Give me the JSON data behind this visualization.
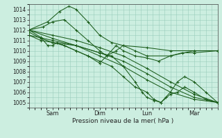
{
  "bg_color": "#cceee0",
  "grid_color": "#99ccbb",
  "line_color": "#1a5c1a",
  "xlabel": "Pression niveau de la mer( hPa )",
  "ylim": [
    1004.5,
    1014.5
  ],
  "yticks": [
    1005,
    1006,
    1007,
    1008,
    1009,
    1010,
    1011,
    1012,
    1013,
    1014
  ],
  "xlim": [
    0,
    8
  ],
  "xtick_positions": [
    1,
    3,
    5,
    7
  ],
  "xtick_labels": [
    "Sam",
    "Dim",
    "Lun",
    "Mar"
  ],
  "lines": [
    {
      "x": [
        0.0,
        0.8,
        1.3,
        1.7,
        2.0,
        2.5,
        3.0,
        3.5,
        4.0,
        5.0,
        6.0,
        7.0,
        8.0
      ],
      "y": [
        1012.0,
        1012.8,
        1013.8,
        1014.3,
        1014.0,
        1012.8,
        1011.5,
        1010.8,
        1010.5,
        1010.3,
        1010.0,
        1010.0,
        1010.0
      ]
    },
    {
      "x": [
        0.0,
        0.6,
        1.0,
        1.5,
        2.0,
        2.5,
        3.0,
        3.3,
        3.7,
        4.0,
        4.5,
        5.0,
        6.0,
        7.0,
        8.0
      ],
      "y": [
        1012.0,
        1012.3,
        1012.8,
        1013.0,
        1012.0,
        1011.0,
        1010.0,
        1009.5,
        1010.0,
        1010.5,
        1010.0,
        1009.5,
        1009.5,
        1010.0,
        1010.0
      ]
    },
    {
      "x": [
        0.0,
        0.5,
        0.8,
        1.0,
        1.2,
        1.5,
        2.0,
        2.5,
        3.0,
        3.3,
        3.7,
        4.0,
        4.5,
        5.0,
        5.5,
        6.0,
        6.5,
        7.0,
        8.0
      ],
      "y": [
        1012.0,
        1011.3,
        1010.5,
        1010.5,
        1010.8,
        1010.5,
        1010.0,
        1009.5,
        1008.8,
        1009.5,
        1010.5,
        1010.0,
        1009.5,
        1009.3,
        1009.0,
        1009.5,
        1009.8,
        1009.8,
        1010.0
      ]
    },
    {
      "x": [
        0.0,
        1.0,
        2.0,
        3.0,
        4.0,
        5.0,
        6.0,
        7.0,
        8.0
      ],
      "y": [
        1012.0,
        1011.5,
        1011.0,
        1010.3,
        1009.5,
        1008.3,
        1007.0,
        1005.8,
        1005.0
      ]
    },
    {
      "x": [
        0.0,
        1.0,
        2.0,
        3.0,
        4.0,
        5.0,
        6.0,
        7.0,
        8.0
      ],
      "y": [
        1011.5,
        1011.0,
        1010.5,
        1009.8,
        1009.0,
        1007.8,
        1006.5,
        1005.5,
        1005.0
      ]
    },
    {
      "x": [
        0.0,
        1.0,
        2.0,
        3.0,
        4.0,
        5.0,
        6.0,
        7.0,
        8.0
      ],
      "y": [
        1012.0,
        1011.2,
        1010.5,
        1009.5,
        1008.5,
        1007.2,
        1006.0,
        1005.3,
        1005.0
      ]
    },
    {
      "x": [
        0.0,
        0.5,
        1.0,
        1.5,
        2.0,
        2.5,
        3.0,
        3.5,
        4.0,
        4.5,
        5.0,
        5.3,
        5.6,
        6.0,
        6.3,
        6.6,
        7.0,
        7.5,
        8.0
      ],
      "y": [
        1011.8,
        1011.2,
        1010.8,
        1010.5,
        1010.0,
        1009.5,
        1009.0,
        1008.5,
        1007.5,
        1006.5,
        1006.0,
        1005.3,
        1005.0,
        1005.8,
        1006.0,
        1006.5,
        1006.0,
        1005.3,
        1005.0
      ]
    },
    {
      "x": [
        0.0,
        0.5,
        1.0,
        2.0,
        3.0,
        3.5,
        4.0,
        4.5,
        4.8,
        5.0,
        5.3,
        5.6,
        5.8,
        6.0,
        6.3,
        6.6,
        7.0,
        7.5,
        8.0
      ],
      "y": [
        1011.5,
        1011.0,
        1010.8,
        1010.5,
        1009.8,
        1009.5,
        1008.5,
        1007.0,
        1006.0,
        1005.5,
        1005.2,
        1005.0,
        1005.5,
        1006.0,
        1007.0,
        1007.5,
        1007.0,
        1006.0,
        1005.0
      ]
    }
  ]
}
